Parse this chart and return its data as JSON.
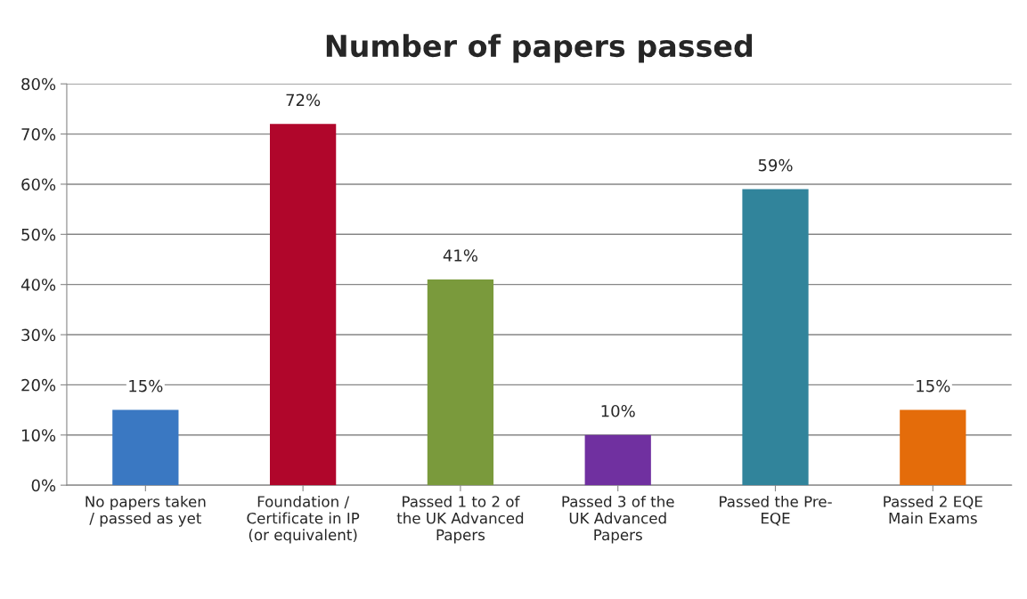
{
  "chart_data": {
    "type": "bar",
    "title": "Number of papers passed",
    "categories": [
      "No papers taken\n/ passed as yet",
      "Foundation /\nCertificate in IP\n(or equivalent)",
      "Passed 1 to 2 of\nthe UK Advanced\nPapers",
      "Passed 3 of the\nUK Advanced\nPapers",
      "Passed the Pre-\nEQE",
      "Passed 2 EQE\nMain Exams"
    ],
    "values": [
      15,
      72,
      41,
      10,
      59,
      15
    ],
    "colors": [
      "#3a78c2",
      "#b0062b",
      "#7a9a3c",
      "#7030a0",
      "#31849b",
      "#e46c0a"
    ],
    "value_labels": [
      "15%",
      "72%",
      "41%",
      "10%",
      "59%",
      "15%"
    ],
    "ylim": [
      0,
      80
    ],
    "yticks": [
      {
        "value": 0,
        "label": "0%"
      },
      {
        "value": 10,
        "label": "10%"
      },
      {
        "value": 20,
        "label": "20%"
      },
      {
        "value": 30,
        "label": "30%"
      },
      {
        "value": 40,
        "label": "40%"
      },
      {
        "value": 50,
        "label": "50%"
      },
      {
        "value": 60,
        "label": "60%"
      },
      {
        "value": 70,
        "label": "70%"
      },
      {
        "value": 80,
        "label": "80%"
      }
    ],
    "grid": "y",
    "legend": false
  }
}
